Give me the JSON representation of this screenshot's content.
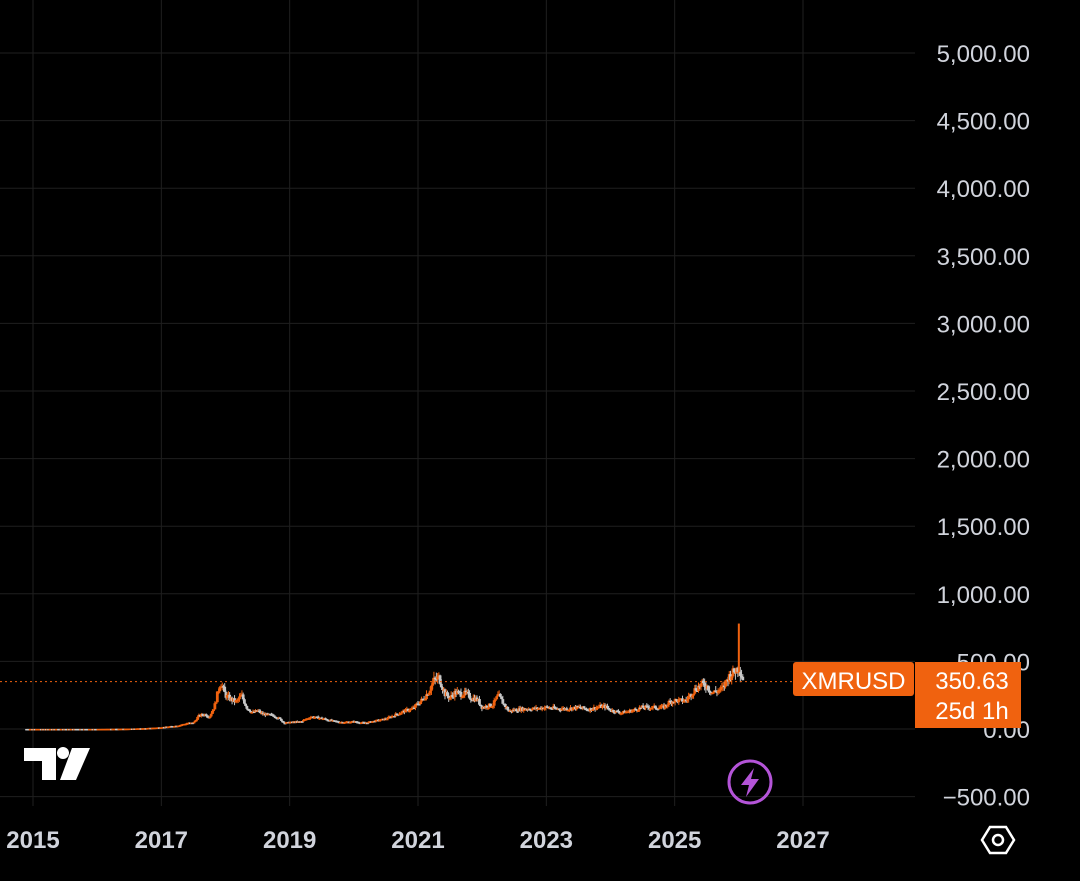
{
  "chart_data": {
    "type": "candlestick",
    "symbol": "XMRUSD",
    "last_price": 350.63,
    "last_price_label": "350.63",
    "countdown_label": "25d 1h",
    "y_ticks": [
      5000,
      4500,
      4000,
      3500,
      3000,
      2500,
      2000,
      1500,
      1000,
      500,
      0,
      -500
    ],
    "y_tick_labels": [
      "5,000.00",
      "4,500.00",
      "4,000.00",
      "3,500.00",
      "3,000.00",
      "2,500.00",
      "2,000.00",
      "1,500.00",
      "1,000.00",
      "500.00",
      "0.00",
      "−500.00"
    ],
    "x_ticks": [
      2015,
      2017,
      2019,
      2021,
      2023,
      2025,
      2027
    ],
    "x_tick_labels": [
      "2015",
      "2017",
      "2019",
      "2021",
      "2023",
      "2025",
      "2027"
    ],
    "ylim": [
      -500,
      5000
    ],
    "grid": true,
    "colors": {
      "background": "#000000",
      "up": "#f0620f",
      "down": "#c7c7c7",
      "price_line": "#f0620f",
      "grid": "#1f1f1f",
      "text": "#d1d4dc",
      "bolt": "#b454d8"
    },
    "monthly_closes": [
      [
        2014.9,
        0.4
      ],
      [
        2015.0,
        0.45
      ],
      [
        2015.25,
        0.5
      ],
      [
        2015.5,
        0.6
      ],
      [
        2015.75,
        0.5
      ],
      [
        2016.0,
        0.5
      ],
      [
        2016.25,
        1.5
      ],
      [
        2016.5,
        3
      ],
      [
        2016.75,
        6
      ],
      [
        2017.0,
        13
      ],
      [
        2017.25,
        25
      ],
      [
        2017.42,
        45
      ],
      [
        2017.5,
        45
      ],
      [
        2017.58,
        95
      ],
      [
        2017.67,
        110
      ],
      [
        2017.75,
        90
      ],
      [
        2017.83,
        170
      ],
      [
        2017.92,
        350
      ],
      [
        2018.0,
        250
      ],
      [
        2018.08,
        220
      ],
      [
        2018.17,
        200
      ],
      [
        2018.25,
        250
      ],
      [
        2018.33,
        160
      ],
      [
        2018.42,
        120
      ],
      [
        2018.5,
        135
      ],
      [
        2018.58,
        110
      ],
      [
        2018.67,
        105
      ],
      [
        2018.75,
        100
      ],
      [
        2018.83,
        80
      ],
      [
        2018.92,
        45
      ],
      [
        2019.0,
        50
      ],
      [
        2019.17,
        55
      ],
      [
        2019.33,
        90
      ],
      [
        2019.5,
        80
      ],
      [
        2019.67,
        60
      ],
      [
        2019.83,
        50
      ],
      [
        2020.0,
        55
      ],
      [
        2020.17,
        45
      ],
      [
        2020.33,
        60
      ],
      [
        2020.5,
        75
      ],
      [
        2020.67,
        110
      ],
      [
        2020.83,
        140
      ],
      [
        2020.92,
        150
      ],
      [
        2021.0,
        190
      ],
      [
        2021.08,
        220
      ],
      [
        2021.17,
        280
      ],
      [
        2021.25,
        360
      ],
      [
        2021.33,
        380
      ],
      [
        2021.42,
        260
      ],
      [
        2021.5,
        230
      ],
      [
        2021.58,
        270
      ],
      [
        2021.67,
        260
      ],
      [
        2021.75,
        260
      ],
      [
        2021.83,
        230
      ],
      [
        2021.92,
        220
      ],
      [
        2022.0,
        160
      ],
      [
        2022.17,
        180
      ],
      [
        2022.25,
        250
      ],
      [
        2022.33,
        190
      ],
      [
        2022.42,
        130
      ],
      [
        2022.5,
        140
      ],
      [
        2022.67,
        150
      ],
      [
        2022.83,
        150
      ],
      [
        2023.0,
        160
      ],
      [
        2023.17,
        150
      ],
      [
        2023.33,
        150
      ],
      [
        2023.5,
        160
      ],
      [
        2023.67,
        145
      ],
      [
        2023.83,
        165
      ],
      [
        2023.92,
        165
      ],
      [
        2024.0,
        140
      ],
      [
        2024.17,
        120
      ],
      [
        2024.33,
        135
      ],
      [
        2024.5,
        160
      ],
      [
        2024.67,
        160
      ],
      [
        2024.83,
        160
      ],
      [
        2024.92,
        200
      ],
      [
        2025.0,
        210
      ],
      [
        2025.17,
        210
      ],
      [
        2025.33,
        300
      ],
      [
        2025.42,
        330
      ],
      [
        2025.5,
        320
      ],
      [
        2025.58,
        270
      ],
      [
        2025.67,
        280
      ],
      [
        2025.75,
        300
      ],
      [
        2025.83,
        380
      ],
      [
        2025.92,
        420
      ],
      [
        2026.0,
        460
      ],
      [
        2026.08,
        350.63
      ]
    ],
    "spike_high": [
      2026.0,
      780
    ]
  }
}
